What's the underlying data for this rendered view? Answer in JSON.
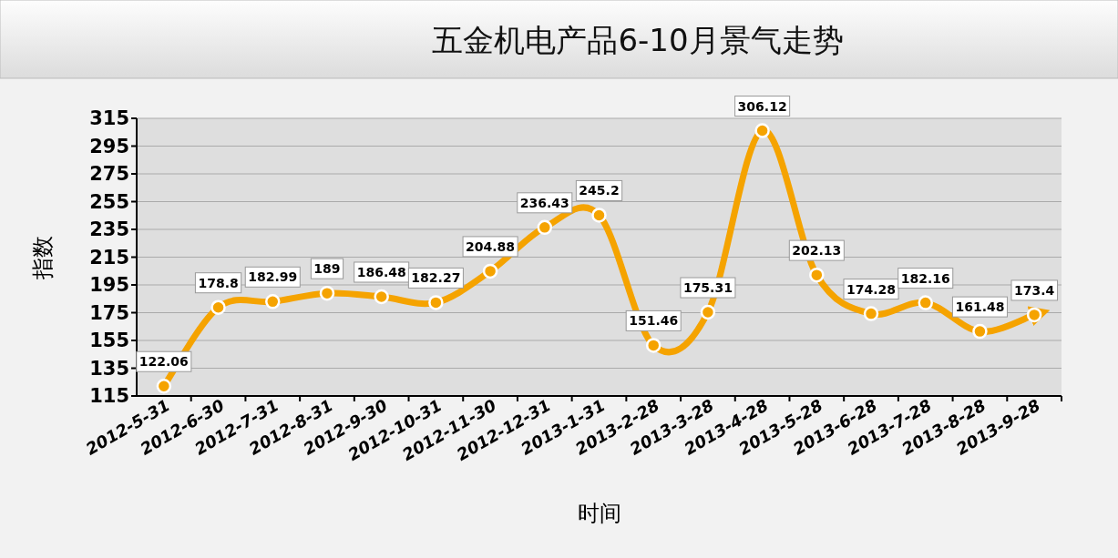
{
  "chart_data": {
    "type": "line",
    "title": "五金机电产品6-10月景气走势",
    "xlabel": "时间",
    "ylabel": "指数",
    "categories": [
      "2012-5-31",
      "2012-6-30",
      "2012-7-31",
      "2012-8-31",
      "2012-9-30",
      "2012-10-31",
      "2012-11-30",
      "2012-12-31",
      "2013-1-31",
      "2013-2-28",
      "2013-3-28",
      "2013-4-28",
      "2013-5-28",
      "2013-6-28",
      "2013-7-28",
      "2013-8-28",
      "2013-9-28"
    ],
    "series": [
      {
        "color": "#f5a300",
        "values": [
          122.06,
          178.8,
          182.99,
          189,
          186.48,
          182.27,
          204.88,
          236.43,
          245.2,
          151.46,
          175.31,
          306.12,
          202.13,
          174.28,
          182.16,
          161.48,
          173.4
        ]
      }
    ],
    "ylim": [
      115,
      315
    ],
    "yticks": [
      115,
      135,
      155,
      175,
      195,
      215,
      235,
      255,
      275,
      295,
      315
    ],
    "grid": "y",
    "marker": "circle",
    "line_style": "solid",
    "data_labels": true
  }
}
